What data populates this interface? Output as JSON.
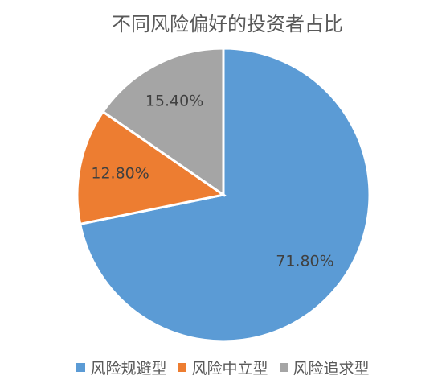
{
  "chart_data": {
    "type": "pie",
    "title": "不同风险偏好的投资者占比",
    "categories": [
      "风险规避型",
      "风险中立型",
      "风险追求型"
    ],
    "values": [
      71.8,
      12.8,
      15.4
    ],
    "value_labels": [
      "71.80%",
      "12.80%",
      "15.40%"
    ],
    "colors": [
      "#5b9bd5",
      "#ed7d31",
      "#a5a5a5"
    ],
    "legend": "bottom"
  }
}
